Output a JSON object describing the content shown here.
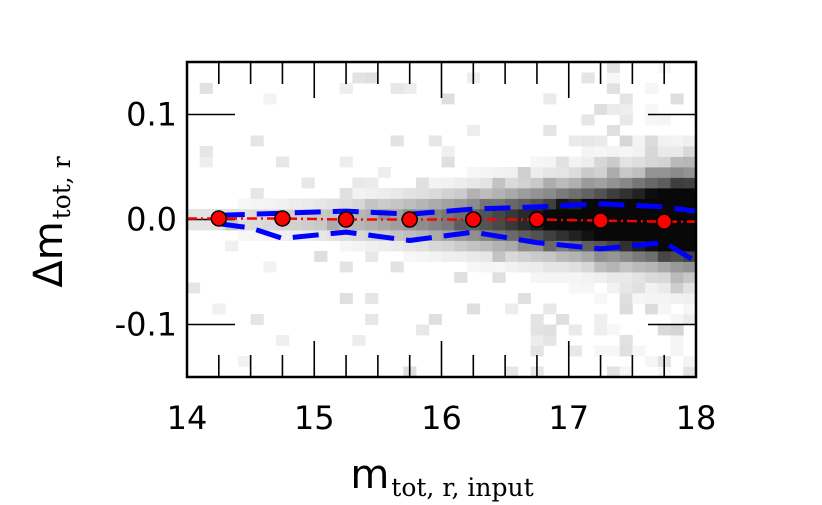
{
  "chart_data": {
    "type": "scatter",
    "title": "",
    "xlabel": {
      "main": "m",
      "sub": "tot, r, input"
    },
    "ylabel": {
      "main": "Δm",
      "sub": "tot, r"
    },
    "xlim": [
      14,
      18
    ],
    "ylim": [
      -0.15,
      0.15
    ],
    "xticks": [
      14,
      15,
      16,
      17,
      18
    ],
    "xtick_labels": [
      "14",
      "15",
      "16",
      "17",
      "18"
    ],
    "yticks": [
      -0.1,
      0.0,
      0.1
    ],
    "ytick_labels": [
      "-0.1",
      "0.0",
      "0.1"
    ],
    "grid": false,
    "legend": "none",
    "colors": {
      "points": "#ff0000",
      "median": "#ff0000",
      "scatter_band": "#0000ff",
      "density": "#000000"
    },
    "series": [
      {
        "role": "median-points",
        "x": [
          14.25,
          14.75,
          15.25,
          15.75,
          16.25,
          16.75,
          17.25,
          17.75
        ],
        "y": [
          0.001,
          0.001,
          0.0,
          0.0,
          0.0,
          0.0,
          -0.001,
          -0.002
        ]
      },
      {
        "role": "median-line",
        "x": [
          14.0,
          14.25,
          14.75,
          15.25,
          15.75,
          16.25,
          16.75,
          17.25,
          17.75,
          18.0
        ],
        "y": [
          0.001,
          0.001,
          0.001,
          0.0,
          0.0,
          0.0,
          0.0,
          -0.001,
          -0.002,
          -0.002
        ]
      },
      {
        "role": "upper-scatter",
        "x": [
          14.25,
          14.75,
          15.25,
          15.75,
          16.25,
          16.75,
          17.25,
          17.75,
          18.0
        ],
        "y": [
          0.004,
          0.006,
          0.008,
          0.005,
          0.01,
          0.012,
          0.015,
          0.012,
          0.008
        ]
      },
      {
        "role": "lower-scatter",
        "x": [
          14.25,
          14.5,
          14.75,
          15.25,
          15.75,
          16.25,
          16.75,
          17.25,
          17.75,
          18.0
        ],
        "y": [
          -0.004,
          -0.008,
          -0.018,
          -0.012,
          -0.02,
          -0.012,
          -0.022,
          -0.028,
          -0.022,
          -0.04
        ]
      }
    ]
  }
}
